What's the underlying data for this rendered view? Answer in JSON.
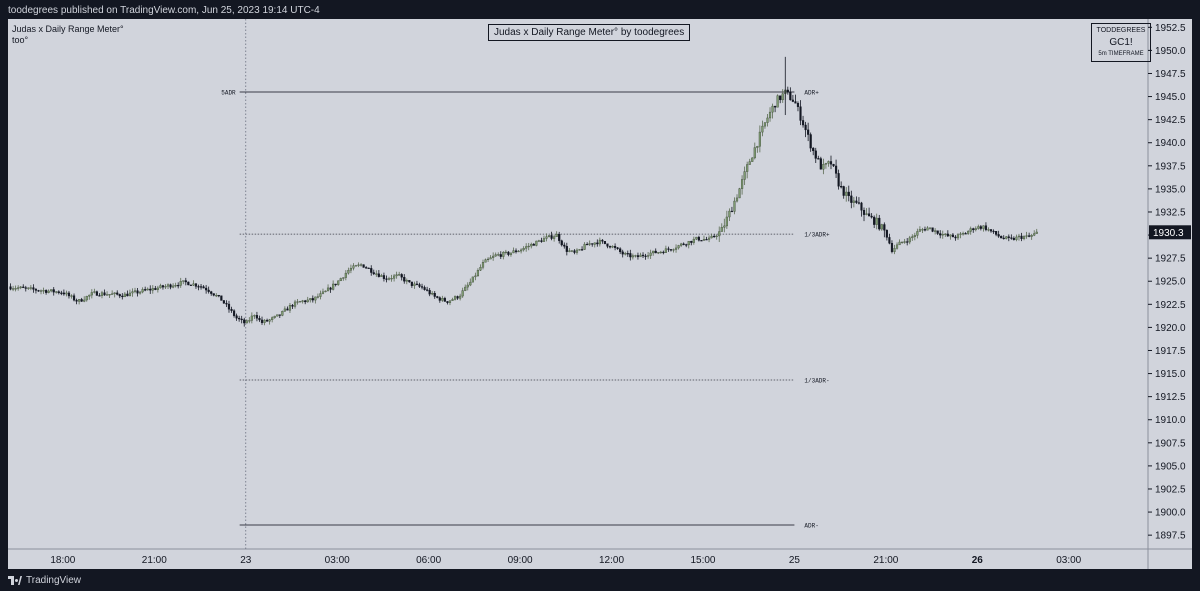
{
  "header": {
    "published": "toodegrees published on TradingView.com, Jun 25, 2023 19:14 UTC-4"
  },
  "footer": {
    "brand": "TradingView"
  },
  "indicator": {
    "name": "Judas x Daily Range Meter°",
    "short": "too°",
    "title": "Judas x Daily Range Meter° by toodegrees",
    "author_tag": "TODDEGREES",
    "symbol": "GC1!",
    "timeframe": "5m TIMEFRAME"
  },
  "chart_data": {
    "type": "candlestick",
    "symbol": "GC1!",
    "interval": "5m",
    "y_axis": {
      "range": [
        1896.0,
        1953.4
      ],
      "ticks": [
        1897.5,
        1900.0,
        1902.5,
        1905.0,
        1907.5,
        1910.0,
        1912.5,
        1915.0,
        1917.5,
        1920.0,
        1922.5,
        1925.0,
        1927.5,
        1930.0,
        1932.5,
        1935.0,
        1937.5,
        1940.0,
        1942.5,
        1945.0,
        1947.5,
        1950.0,
        1952.5
      ],
      "tick_labels": [
        "1897.5",
        "1900.0",
        "1902.5",
        "1905.0",
        "1907.5",
        "1910.0",
        "1912.5",
        "1915.0",
        "1917.5",
        "1920.0",
        "1922.5",
        "1925.0",
        "1927.5",
        "1930.0",
        "1932.5",
        "1935.0",
        "1937.5",
        "1940.0",
        "1942.5",
        "1945.0",
        "1947.5",
        "1950.0",
        "1952.5"
      ]
    },
    "x_axis": {
      "range_hours": [
        -7.8,
        29.6
      ],
      "ticks": [
        {
          "h": -6,
          "label": "18:00",
          "bold": false
        },
        {
          "h": -3,
          "label": "21:00",
          "bold": false
        },
        {
          "h": 0,
          "label": "23",
          "bold": false
        },
        {
          "h": 3,
          "label": "03:00",
          "bold": false
        },
        {
          "h": 6,
          "label": "06:00",
          "bold": false
        },
        {
          "h": 9,
          "label": "09:00",
          "bold": false
        },
        {
          "h": 12,
          "label": "12:00",
          "bold": false
        },
        {
          "h": 15,
          "label": "15:00",
          "bold": false
        },
        {
          "h": 18,
          "label": "25",
          "bold": false
        },
        {
          "h": 21,
          "label": "21:00",
          "bold": false
        },
        {
          "h": 24,
          "label": "26",
          "bold": true
        },
        {
          "h": 27,
          "label": "03:00",
          "bold": false
        }
      ]
    },
    "last_price": {
      "value": 1930.3,
      "label": "1930.3"
    },
    "session_start_h": 0,
    "levels": [
      {
        "name": "adr-plus",
        "price": 1945.5,
        "style": "solid",
        "start_h": -0.2,
        "end_h": 18.0,
        "right_label": "ADR+",
        "left_label": "5ADR"
      },
      {
        "name": "third-adr-plus",
        "price": 1930.1,
        "style": "dotted",
        "start_h": -0.2,
        "end_h": 18.0,
        "right_label": "1/3ADR+",
        "left_label": ""
      },
      {
        "name": "third-adr-minus",
        "price": 1914.3,
        "style": "dotted",
        "start_h": -0.2,
        "end_h": 18.0,
        "right_label": "1/3ADR-",
        "left_label": ""
      },
      {
        "name": "adr-minus",
        "price": 1898.6,
        "style": "solid",
        "start_h": -0.2,
        "end_h": 18.0,
        "right_label": "ADR-",
        "left_label": ""
      }
    ],
    "close_path": [
      [
        -7.8,
        1924.4
      ],
      [
        -7.0,
        1924.1
      ],
      [
        -6.0,
        1923.8
      ],
      [
        -5.5,
        1922.8
      ],
      [
        -5.0,
        1923.7
      ],
      [
        -4.0,
        1923.5
      ],
      [
        -3.3,
        1924.0
      ],
      [
        -2.7,
        1924.4
      ],
      [
        -2.0,
        1924.9
      ],
      [
        -1.5,
        1924.5
      ],
      [
        -1.2,
        1924.0
      ],
      [
        -0.8,
        1923.0
      ],
      [
        -0.5,
        1921.8
      ],
      [
        -0.3,
        1921.0
      ],
      [
        0.0,
        1920.4
      ],
      [
        0.3,
        1921.5
      ],
      [
        0.5,
        1920.5
      ],
      [
        0.8,
        1920.8
      ],
      [
        1.1,
        1921.3
      ],
      [
        1.5,
        1922.4
      ],
      [
        1.8,
        1922.8
      ],
      [
        2.2,
        1923.0
      ],
      [
        2.6,
        1923.8
      ],
      [
        3.0,
        1924.9
      ],
      [
        3.4,
        1926.3
      ],
      [
        3.8,
        1926.8
      ],
      [
        4.2,
        1926.0
      ],
      [
        4.6,
        1925.3
      ],
      [
        5.0,
        1925.6
      ],
      [
        5.4,
        1924.7
      ],
      [
        5.8,
        1924.3
      ],
      [
        6.2,
        1923.3
      ],
      [
        6.6,
        1922.8
      ],
      [
        7.0,
        1923.4
      ],
      [
        7.4,
        1925.0
      ],
      [
        7.8,
        1927.0
      ],
      [
        8.2,
        1927.8
      ],
      [
        8.6,
        1928.0
      ],
      [
        9.0,
        1928.4
      ],
      [
        9.4,
        1929.0
      ],
      [
        9.8,
        1929.6
      ],
      [
        10.2,
        1930.0
      ],
      [
        10.5,
        1928.4
      ],
      [
        10.8,
        1928.0
      ],
      [
        11.2,
        1929.0
      ],
      [
        11.6,
        1929.3
      ],
      [
        12.0,
        1928.8
      ],
      [
        12.4,
        1927.9
      ],
      [
        12.8,
        1927.6
      ],
      [
        13.2,
        1928.0
      ],
      [
        13.6,
        1928.2
      ],
      [
        14.0,
        1928.6
      ],
      [
        14.4,
        1929.1
      ],
      [
        14.8,
        1929.6
      ],
      [
        15.2,
        1929.5
      ],
      [
        15.6,
        1930.4
      ],
      [
        15.9,
        1932.6
      ],
      [
        16.2,
        1935.0
      ],
      [
        16.5,
        1937.8
      ],
      [
        16.8,
        1940.2
      ],
      [
        17.1,
        1942.6
      ],
      [
        17.4,
        1944.5
      ],
      [
        17.7,
        1945.4
      ],
      [
        18.0,
        1944.5
      ],
      [
        18.3,
        1942.0
      ],
      [
        18.6,
        1939.2
      ],
      [
        18.9,
        1937.2
      ],
      [
        19.2,
        1937.8
      ],
      [
        19.5,
        1935.2
      ],
      [
        19.8,
        1933.8
      ],
      [
        20.1,
        1933.2
      ],
      [
        20.4,
        1932.0
      ],
      [
        20.7,
        1931.4
      ],
      [
        21.0,
        1930.2
      ],
      [
        21.2,
        1928.4
      ],
      [
        21.5,
        1929.2
      ],
      [
        21.8,
        1929.6
      ],
      [
        22.1,
        1930.5
      ],
      [
        22.4,
        1930.8
      ],
      [
        22.7,
        1930.3
      ],
      [
        23.0,
        1929.9
      ],
      [
        23.3,
        1929.8
      ],
      [
        23.6,
        1930.2
      ],
      [
        23.9,
        1930.8
      ],
      [
        24.2,
        1930.9
      ],
      [
        24.5,
        1930.3
      ],
      [
        24.8,
        1929.7
      ],
      [
        25.1,
        1929.5
      ],
      [
        25.4,
        1929.8
      ],
      [
        25.7,
        1929.8
      ],
      [
        26.0,
        1930.3
      ]
    ]
  }
}
